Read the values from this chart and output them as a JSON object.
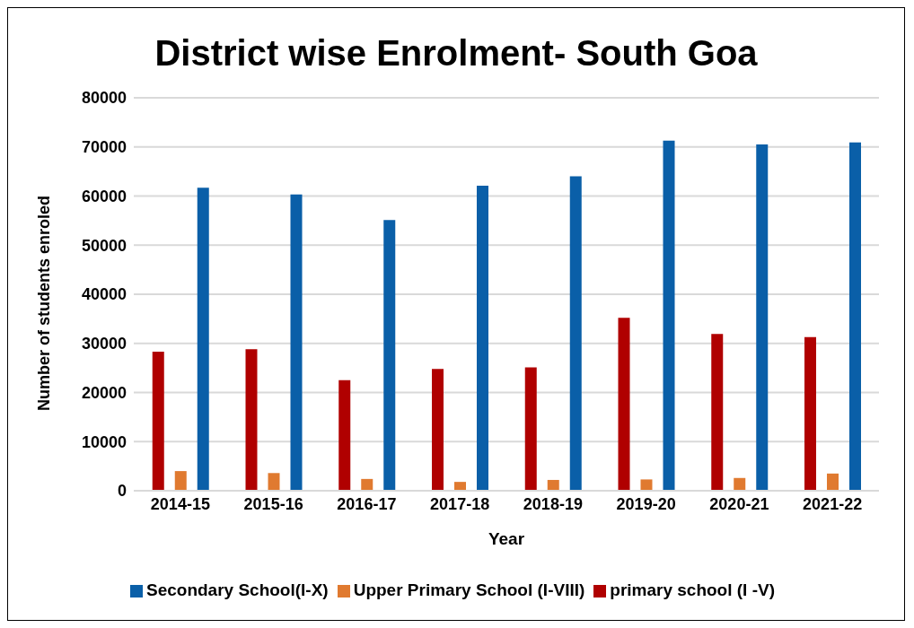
{
  "chart_data": {
    "type": "bar",
    "title": "District wise Enrolment- South Goa",
    "xlabel": "Year",
    "ylabel": "Number of students enroled",
    "categories": [
      "2014-15",
      "2015-16",
      "2016-17",
      "2017-18",
      "2018-19",
      "2019-20",
      "2020-21",
      "2021-22"
    ],
    "series": [
      {
        "name": "primary school (I -V)",
        "color": "#b00000",
        "values": [
          28300,
          28800,
          22500,
          24800,
          25100,
          35200,
          31900,
          31300
        ]
      },
      {
        "name": "Upper Primary School (I-VIII)",
        "color": "#e07a30",
        "values": [
          4000,
          3600,
          2400,
          1800,
          2200,
          2300,
          2600,
          3500
        ]
      },
      {
        "name": "Secondary School(I-X)",
        "color": "#0a5fa8",
        "values": [
          61700,
          60300,
          55100,
          62100,
          64000,
          71300,
          70500,
          70900
        ]
      }
    ],
    "ylim": [
      0,
      80000
    ],
    "yticks": [
      0,
      10000,
      20000,
      30000,
      40000,
      50000,
      60000,
      70000,
      80000
    ],
    "grid": "y",
    "legend": "bottom"
  }
}
